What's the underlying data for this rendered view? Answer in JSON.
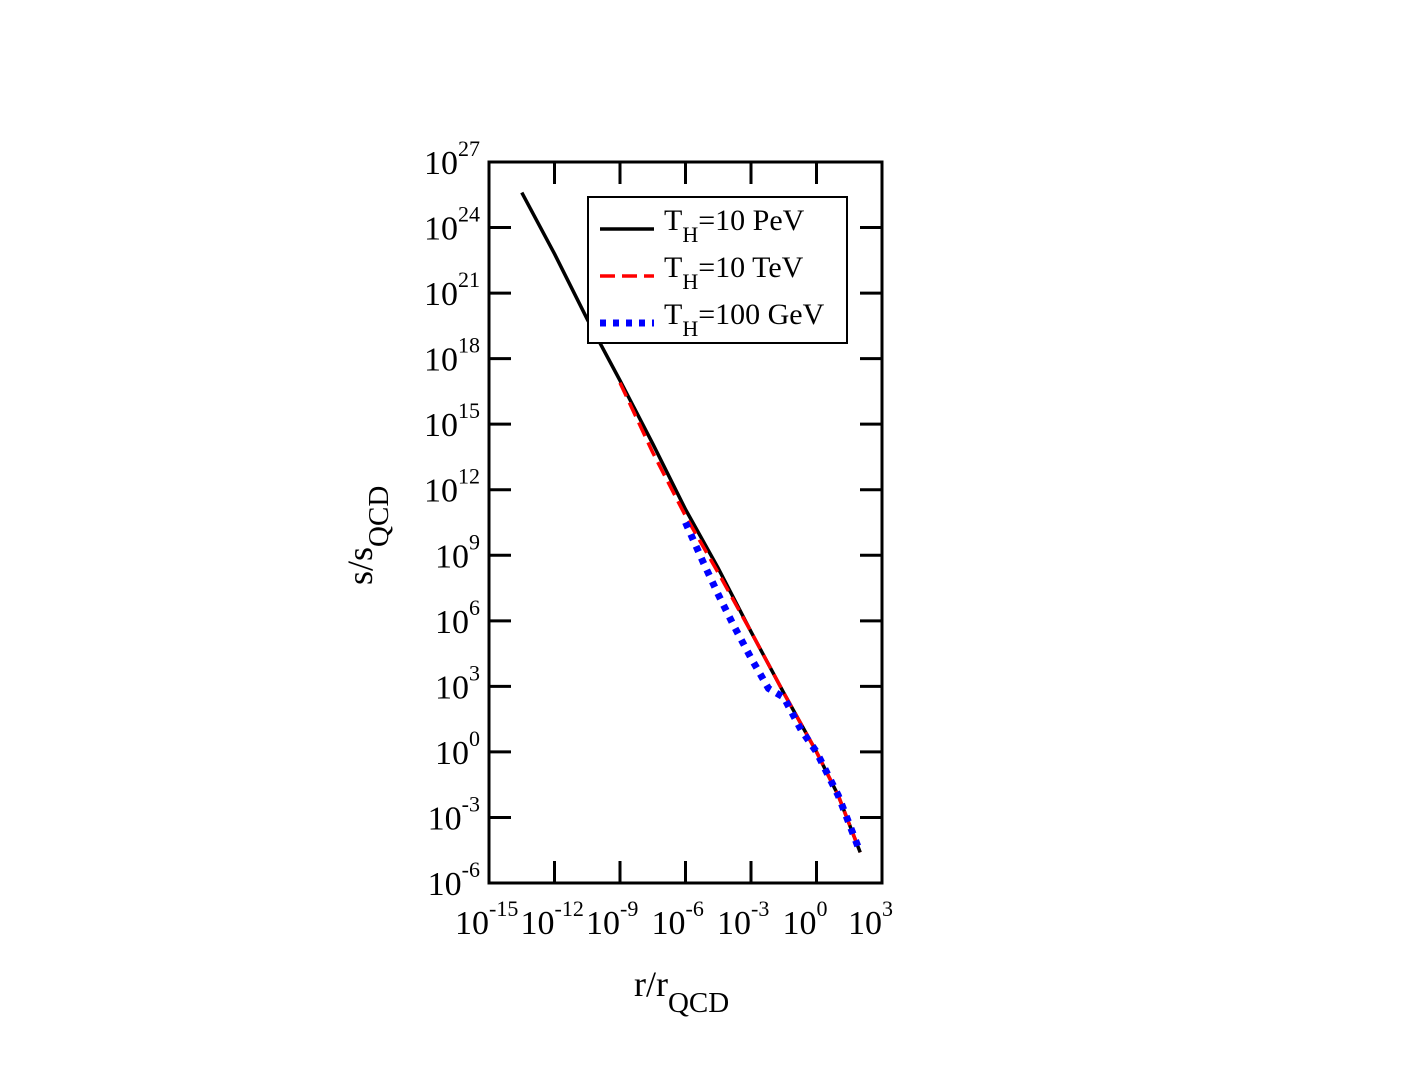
{
  "chart_data": {
    "type": "line",
    "xlabel": {
      "base": "r/r",
      "sub": "QCD"
    },
    "ylabel": {
      "base": "s/s",
      "sub": "QCD"
    },
    "x_scale": "log",
    "y_scale": "log",
    "xlim_exp": [
      -15,
      3
    ],
    "ylim_exp": [
      -6,
      27
    ],
    "x_ticks": [
      {
        "base": "10",
        "exp": "-15",
        "e": -15
      },
      {
        "base": "10",
        "exp": "-12",
        "e": -12
      },
      {
        "base": "10",
        "exp": "-9",
        "e": -9
      },
      {
        "base": "10",
        "exp": "-6",
        "e": -6
      },
      {
        "base": "10",
        "exp": "-3",
        "e": -3
      },
      {
        "base": "10",
        "exp": "0",
        "e": 0
      },
      {
        "base": "10",
        "exp": "3",
        "e": 3
      }
    ],
    "y_ticks": [
      {
        "base": "10",
        "exp": "-6",
        "e": -6
      },
      {
        "base": "10",
        "exp": "-3",
        "e": -3
      },
      {
        "base": "10",
        "exp": "0",
        "e": 0
      },
      {
        "base": "10",
        "exp": "3",
        "e": 3
      },
      {
        "base": "10",
        "exp": "6",
        "e": 6
      },
      {
        "base": "10",
        "exp": "9",
        "e": 9
      },
      {
        "base": "10",
        "exp": "12",
        "e": 12
      },
      {
        "base": "10",
        "exp": "15",
        "e": 15
      },
      {
        "base": "10",
        "exp": "18",
        "e": 18
      },
      {
        "base": "10",
        "exp": "21",
        "e": 21
      },
      {
        "base": "10",
        "exp": "24",
        "e": 24
      },
      {
        "base": "10",
        "exp": "27",
        "e": 27
      }
    ],
    "grid": false,
    "legend_position": "top-right",
    "series": [
      {
        "name": {
          "pre": "T",
          "sub": "H",
          "post": "=10 PeV"
        },
        "color": "#000000",
        "style": "solid",
        "log10_x": [
          -13.5,
          -12.0,
          -10.5,
          -9.0,
          -7.5,
          -6.0,
          -4.5,
          -3.0,
          -1.5,
          0.0,
          1.0,
          2.0
        ],
        "log10_y": [
          25.6,
          22.8,
          19.8,
          17.0,
          14.1,
          11.1,
          8.4,
          5.5,
          2.7,
          0.0,
          -2.0,
          -4.6
        ]
      },
      {
        "name": {
          "pre": "T",
          "sub": "H",
          "post": "=10 TeV"
        },
        "color": "#ff0000",
        "style": "dashed",
        "log10_x": [
          -9.0,
          -7.5,
          -6.0,
          -4.5,
          -3.0,
          -1.5,
          0.0,
          1.0,
          2.0
        ],
        "log10_y": [
          16.9,
          13.7,
          10.8,
          8.2,
          5.5,
          2.7,
          0.0,
          -2.0,
          -4.6
        ]
      },
      {
        "name": {
          "pre": "T",
          "sub": "H",
          "post": "=100 GeV"
        },
        "color": "#0000ff",
        "style": "dotted",
        "log10_x": [
          -6.0,
          -5.2,
          -4.5,
          -3.8,
          -3.0,
          -2.2,
          -1.5,
          -0.7,
          0.0,
          1.0,
          2.0
        ],
        "log10_y": [
          10.5,
          8.7,
          7.2,
          5.8,
          4.3,
          2.9,
          2.5,
          1.0,
          0.0,
          -2.0,
          -4.6
        ]
      }
    ]
  }
}
